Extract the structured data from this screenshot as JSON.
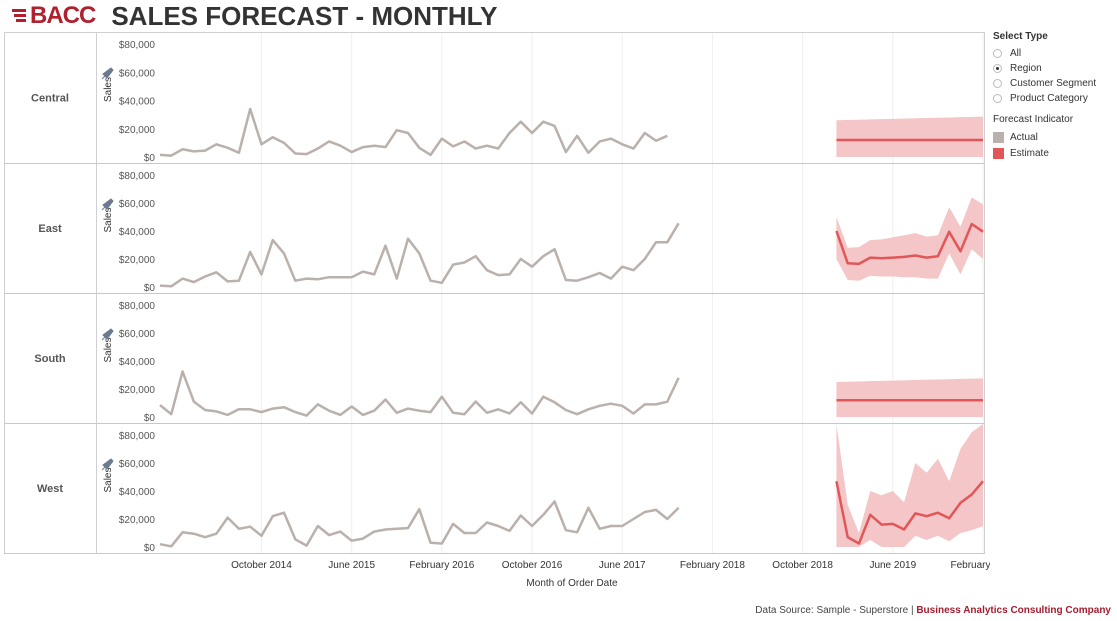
{
  "header": {
    "logo_text": "BACC",
    "title": "SALES FORECAST - MONTHLY"
  },
  "select_type": {
    "title": "Select Type",
    "options": [
      "All",
      "Region",
      "Customer Segment",
      "Product Category"
    ],
    "selected": "Region"
  },
  "forecast_indicator": {
    "title": "Forecast Indicator",
    "items": [
      {
        "label": "Actual",
        "color": "#bab0ac"
      },
      {
        "label": "Estimate",
        "color": "#e15759"
      }
    ]
  },
  "footer": {
    "source": "Data Source: Sample - Superstore",
    "separator": "|",
    "brand": "Business Analytics Consulting Company"
  },
  "chart_data": {
    "type": "line",
    "xlabel": "Month of Order Date",
    "ylabel": "Sales",
    "x_ticks": [
      "October 2014",
      "June 2015",
      "February 2016",
      "October 2016",
      "June 2017",
      "February 2018",
      "October 2018",
      "June 2019",
      "February 2020"
    ],
    "x_start": "2014-01",
    "x_end": "2020-02",
    "y_ticks": [
      0,
      20000,
      40000,
      60000,
      80000
    ],
    "y_tick_labels": [
      "$0",
      "$20,000",
      "$40,000",
      "$60,000",
      "$80,000"
    ],
    "ylim": [
      0,
      80000
    ],
    "actual_start": "2014-01",
    "forecast_start": "2019-01",
    "colors": {
      "actual": "#bab0ac",
      "estimate": "#e15759",
      "band": "#f4c6c7"
    },
    "series": [
      {
        "name": "Central",
        "actual": [
          1500,
          1000,
          5500,
          4000,
          4500,
          9000,
          6500,
          3000,
          34000,
          9000,
          14000,
          10000,
          2500,
          2000,
          6000,
          11000,
          8000,
          3500,
          7000,
          8000,
          7000,
          19000,
          17000,
          6500,
          1500,
          13000,
          7500,
          11000,
          6000,
          8000,
          6000,
          17000,
          25000,
          17000,
          25000,
          22000,
          3500,
          15000,
          3000,
          11000,
          13000,
          9000,
          6000,
          17000,
          11500,
          15000
        ],
        "estimate": [
          12000,
          12000,
          12000,
          12000,
          12000,
          12000,
          12000,
          12000,
          12000,
          12000,
          12000,
          12000,
          12000,
          12000
        ],
        "lower": [
          0,
          0,
          0,
          0,
          0,
          0,
          0,
          0,
          0,
          0,
          0,
          0,
          0,
          0
        ],
        "upper": [
          26000,
          26200,
          26400,
          26600,
          26800,
          27000,
          27200,
          27400,
          27600,
          27800,
          28000,
          28200,
          28400,
          28600
        ]
      },
      {
        "name": "East",
        "actual": [
          1000,
          500,
          6000,
          3500,
          7500,
          10500,
          4000,
          4500,
          25000,
          9000,
          33500,
          24000,
          4500,
          6000,
          5500,
          7000,
          7000,
          7000,
          11000,
          9000,
          29500,
          6000,
          34500,
          24000,
          4500,
          3000,
          16000,
          17500,
          22000,
          12000,
          8500,
          9000,
          20000,
          14500,
          22000,
          27000,
          5000,
          4500,
          7000,
          10000,
          6000,
          14500,
          12000,
          20000,
          32000,
          32000,
          45500
        ],
        "estimate": [
          40000,
          17000,
          16500,
          21000,
          20500,
          21000,
          21500,
          22500,
          21000,
          22000,
          39500,
          25500,
          45000,
          39500
        ],
        "lower": [
          20000,
          5000,
          4500,
          8000,
          7500,
          7500,
          7000,
          7000,
          6000,
          6000,
          24000,
          9000,
          27000,
          20000
        ],
        "upper": [
          50000,
          28000,
          28500,
          33500,
          34000,
          35500,
          37000,
          38500,
          36000,
          37000,
          57000,
          43000,
          64000,
          59000
        ]
      },
      {
        "name": "South",
        "actual": [
          8500,
          2000,
          32500,
          11000,
          5000,
          4000,
          1500,
          5500,
          5500,
          3500,
          6000,
          7000,
          3500,
          1000,
          9000,
          4500,
          1500,
          7500,
          1500,
          4500,
          12500,
          3000,
          6000,
          4500,
          3500,
          14500,
          3000,
          2000,
          11000,
          3000,
          5500,
          2500,
          10500,
          2500,
          14500,
          10500,
          5000,
          2000,
          5500,
          8000,
          9500,
          8000,
          2500,
          9000,
          9000,
          11000,
          28000
        ],
        "estimate": [
          12000,
          12000,
          12000,
          12000,
          12000,
          12000,
          12000,
          12000,
          12000,
          12000,
          12000,
          12000,
          12000,
          12000
        ],
        "lower": [
          0,
          0,
          0,
          0,
          0,
          0,
          0,
          0,
          0,
          0,
          0,
          0,
          0,
          0
        ],
        "upper": [
          25000,
          25200,
          25400,
          25600,
          25800,
          26000,
          26200,
          26400,
          26600,
          26800,
          27000,
          27200,
          27400,
          27600
        ]
      },
      {
        "name": "West",
        "actual": [
          2000,
          500,
          10500,
          9500,
          7000,
          9500,
          21000,
          13000,
          14500,
          8000,
          22000,
          24500,
          5500,
          1000,
          15000,
          8500,
          11000,
          4500,
          6000,
          11000,
          12500,
          13000,
          13500,
          27000,
          3000,
          2500,
          16500,
          10000,
          10000,
          17500,
          15000,
          11500,
          22500,
          15000,
          23000,
          32500,
          12000,
          10500,
          28000,
          13000,
          15000,
          15000,
          20000,
          25000,
          26500,
          20000,
          28000
        ],
        "estimate": [
          47000,
          7000,
          2500,
          23000,
          16000,
          16500,
          12500,
          24000,
          22000,
          24500,
          20500,
          31500,
          37500,
          47000
        ],
        "lower": [
          0,
          0,
          0,
          5000,
          0,
          0,
          0,
          8000,
          5000,
          8000,
          4000,
          10000,
          12000,
          15000
        ],
        "upper": [
          88000,
          30000,
          10000,
          40000,
          37000,
          40000,
          32000,
          60000,
          53000,
          63000,
          47000,
          70000,
          82000,
          88000
        ]
      }
    ]
  }
}
